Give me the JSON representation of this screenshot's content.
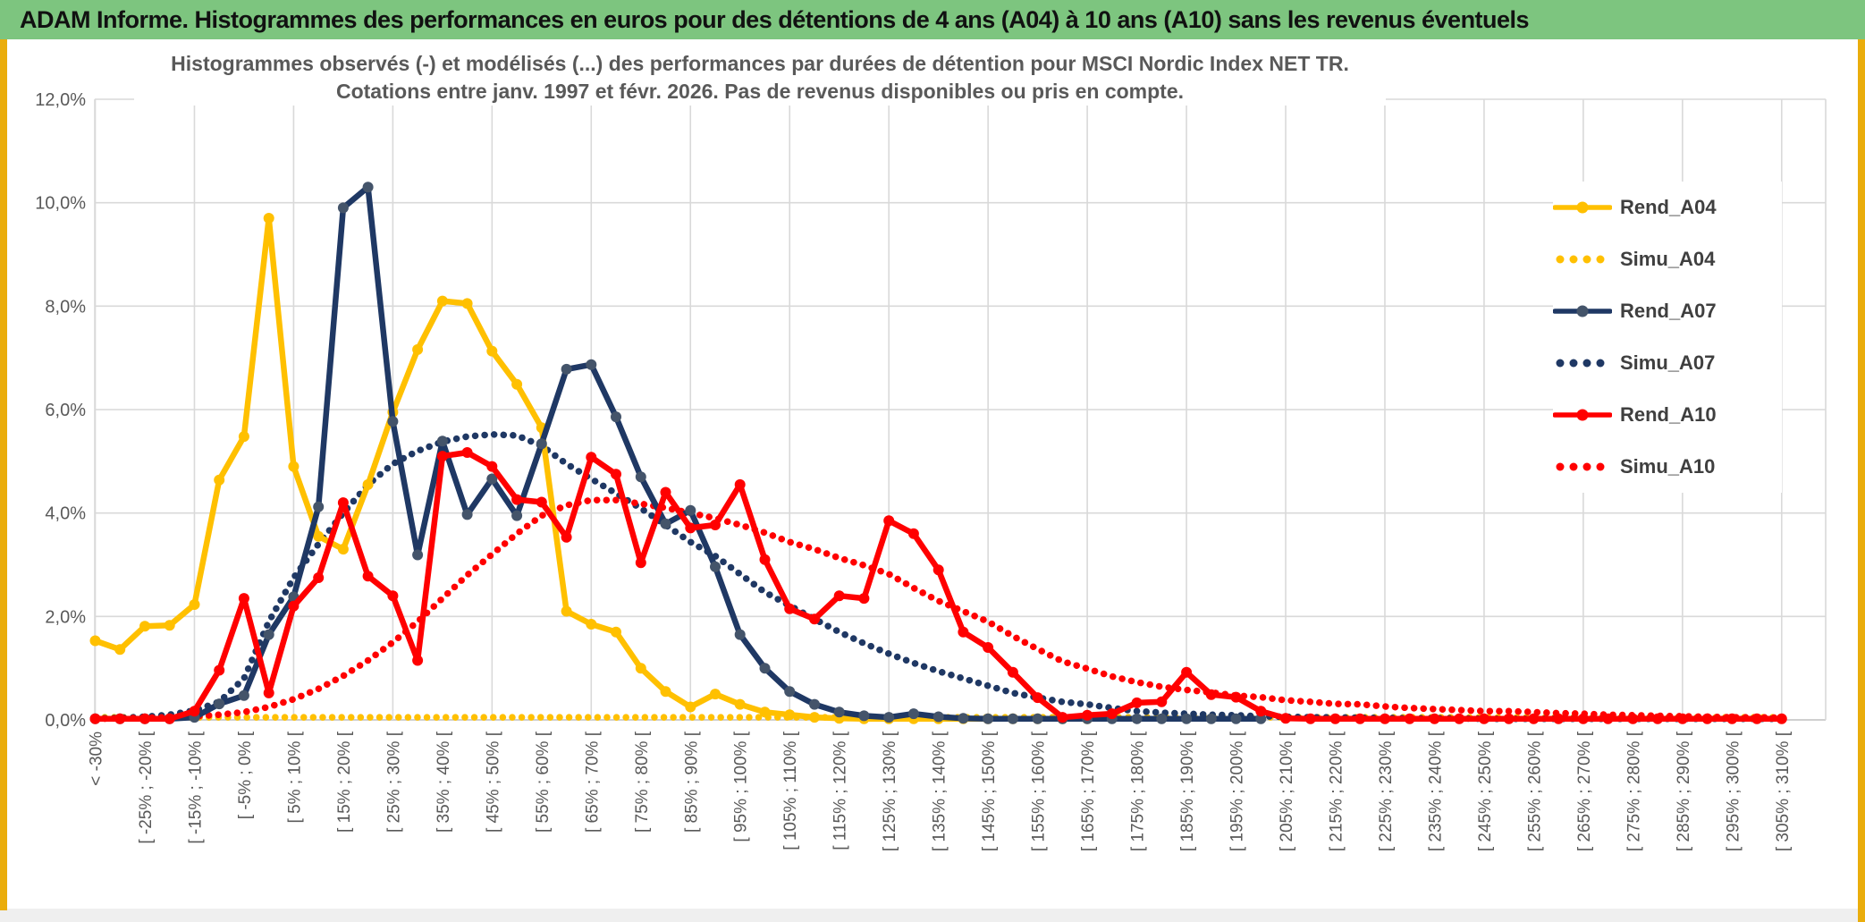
{
  "header": {
    "title": "ADAM Informe. Histogrammes des performances en euros pour des détentions de 4 ans (A04) à 10 ans (A10) sans les revenus éventuels"
  },
  "colors": {
    "header_bg": "#7DC57F",
    "edge_accent": "#EAAD0C",
    "grid": "#D9D9D9",
    "axis_line": "#BFBFBF",
    "axis_text": "#595959",
    "title_text": "#595959",
    "legend_text": "#3F3F3F",
    "gold": "#FFC000",
    "navy": "#1F3864",
    "navy_marker": "#44546A",
    "red": "#FF0000"
  },
  "chart_data": {
    "type": "line",
    "title_line1": "Histogrammes observés (-) et modélisés (...) des performances par durées de détention pour MSCI Nordic Index NET TR.",
    "title_line2": "Cotations entre janv. 1997 et févr. 2026. Pas de revenus disponibles ou pris en compte.",
    "ylabel": "",
    "xlabel": "",
    "ylim": [
      0,
      12
    ],
    "ytick_values": [
      0,
      2,
      4,
      6,
      8,
      10,
      12
    ],
    "ytick_labels": [
      "0,0%",
      "2,0%",
      "4,0%",
      "6,0%",
      "8,0%",
      "10,0%",
      "12,0%"
    ],
    "grid": true,
    "legend_position": "right",
    "n_points": 69,
    "x_label_every": 2,
    "x_grid_every": 4,
    "x_labels": [
      "< -30%",
      "[ -25% ; -20% [",
      "[ -15% ; -10% [",
      "[ -5% ; 0% [",
      "[ 5% ; 10% [",
      "[ 15% ; 20% [",
      "[ 25% ; 30% [",
      "[ 35% ; 40% [",
      "[ 45% ; 50% [",
      "[ 55% ; 60% [",
      "[ 65% ; 70% [",
      "[ 75% ; 80% [",
      "[ 85% ; 90% [",
      "[ 95% ; 100% [",
      "[ 105% ; 110% [",
      "[ 115% ; 120% [",
      "[ 125% ; 130% [",
      "[ 135% ; 140% [",
      "[ 145% ; 150% [",
      "[ 155% ; 160% [",
      "[ 165% ; 170% [",
      "[ 175% ; 180% [",
      "[ 185% ; 190% [",
      "[ 195% ; 200% [",
      "[ 205% ; 210% [",
      "[ 215% ; 220% [",
      "[ 225% ; 230% [",
      "[ 235% ; 240% [",
      "[ 245% ; 250% [",
      "[ 255% ; 260% [",
      "[ 265% ; 270% [",
      "[ 275% ; 280% [",
      "[ 285% ; 290% [",
      "[ 295% ; 300% [",
      "[ 305% ; 310% ["
    ],
    "series": [
      {
        "name": "Simu_A04",
        "style": "dotted",
        "color": "#FFC000",
        "values": [
          0.05,
          0.05,
          0.05,
          0.05,
          0.05,
          0.05,
          0.05,
          0.05,
          0.05,
          0.05,
          0.05,
          0.05,
          0.05,
          0.05,
          0.05,
          0.05,
          0.05,
          0.05,
          0.05,
          0.05,
          0.05,
          0.05,
          0.05,
          0.05,
          0.05,
          0.05,
          0.05,
          0.05,
          0.05,
          0.05,
          0.05,
          0.05,
          0.05,
          0.05,
          0.05,
          0.05,
          0.05,
          0.05,
          0.05,
          0.05,
          0.05,
          0.05,
          0.05,
          0.05,
          0.05,
          0.05,
          0.05,
          0.05,
          0.05,
          0.05,
          0.05,
          0.05,
          0.05,
          0.05,
          0.05,
          0.05,
          0.05,
          0.05,
          0.05,
          0.05,
          0.05,
          0.05,
          0.05,
          0.05,
          0.05,
          0.05,
          0.05,
          0.05,
          0.05
        ]
      },
      {
        "name": "Simu_A07",
        "style": "dotted",
        "color": "#1F3864",
        "values": [
          0.03,
          0.04,
          0.06,
          0.1,
          0.18,
          0.35,
          0.8,
          1.9,
          2.75,
          3.4,
          4.0,
          4.55,
          4.95,
          5.2,
          5.38,
          5.48,
          5.52,
          5.5,
          5.3,
          4.95,
          4.66,
          4.38,
          4.09,
          3.77,
          3.44,
          3.17,
          2.82,
          2.47,
          2.21,
          1.95,
          1.7,
          1.48,
          1.28,
          1.1,
          0.94,
          0.8,
          0.66,
          0.52,
          0.43,
          0.35,
          0.3,
          0.23,
          0.17,
          0.14,
          0.12,
          0.1,
          0.09,
          0.07,
          0.06,
          0.05,
          0.05,
          0.04,
          0.04,
          0.03,
          0.03,
          0.03,
          0.02,
          0.02,
          0.02,
          0.02,
          0.02,
          0.02,
          0.02,
          0.02,
          0.02,
          0.02,
          0.02,
          0.02,
          0.02
        ]
      },
      {
        "name": "Simu_A10",
        "style": "dotted",
        "color": "#FF0000",
        "values": [
          0.02,
          0.03,
          0.04,
          0.05,
          0.07,
          0.1,
          0.15,
          0.25,
          0.4,
          0.6,
          0.85,
          1.15,
          1.5,
          1.9,
          2.35,
          2.8,
          3.2,
          3.6,
          3.95,
          4.15,
          4.25,
          4.25,
          4.18,
          4.1,
          4.0,
          3.9,
          3.77,
          3.62,
          3.44,
          3.3,
          3.13,
          2.99,
          2.82,
          2.55,
          2.3,
          2.1,
          1.9,
          1.62,
          1.37,
          1.13,
          0.99,
          0.84,
          0.73,
          0.64,
          0.58,
          0.53,
          0.47,
          0.44,
          0.38,
          0.35,
          0.31,
          0.3,
          0.26,
          0.23,
          0.21,
          0.19,
          0.17,
          0.17,
          0.15,
          0.13,
          0.12,
          0.1,
          0.09,
          0.08,
          0.07,
          0.06,
          0.05,
          0.05,
          0.04
        ]
      },
      {
        "name": "Rend_A04",
        "style": "solid",
        "color": "#FFC000",
        "marker": "#FFC000",
        "values": [
          1.53,
          1.36,
          1.81,
          1.83,
          2.23,
          4.64,
          5.48,
          9.7,
          4.9,
          3.55,
          3.3,
          4.55,
          5.95,
          7.16,
          8.1,
          8.05,
          7.13,
          6.49,
          5.65,
          2.1,
          1.85,
          1.7,
          1.0,
          0.55,
          0.25,
          0.5,
          0.3,
          0.15,
          0.1,
          0.05,
          0.03,
          0.02,
          0.02,
          0.02,
          0.02,
          0.02,
          0.02,
          0.02,
          0.02,
          0.02,
          0.02,
          null,
          null,
          null,
          null,
          null,
          null,
          null,
          null,
          null,
          null,
          null,
          null,
          null,
          null,
          null,
          null,
          null,
          null,
          null,
          null,
          null,
          null,
          null,
          null,
          null,
          null,
          null,
          null
        ]
      },
      {
        "name": "Rend_A07",
        "style": "solid",
        "color": "#1F3864",
        "marker": "#44546A",
        "values": [
          0.02,
          0.02,
          0.02,
          0.02,
          0.05,
          0.31,
          0.47,
          1.65,
          2.38,
          4.12,
          9.9,
          10.3,
          5.77,
          3.19,
          5.39,
          3.97,
          4.66,
          3.95,
          5.34,
          6.78,
          6.87,
          5.86,
          4.7,
          3.79,
          4.05,
          2.96,
          1.65,
          1.0,
          0.55,
          0.3,
          0.15,
          0.08,
          0.05,
          0.12,
          0.06,
          0.03,
          0.02,
          0.02,
          0.02,
          0.02,
          0.02,
          0.02,
          0.02,
          0.02,
          0.02,
          0.02,
          0.02,
          0.02,
          null,
          null,
          null,
          null,
          null,
          null,
          null,
          null,
          null,
          null,
          null,
          null,
          null,
          null,
          null,
          null,
          null,
          null,
          null,
          null,
          null
        ]
      },
      {
        "name": "Rend_A10",
        "style": "solid",
        "color": "#FF0000",
        "marker": "#FF0000",
        "values": [
          0.02,
          0.02,
          0.02,
          0.02,
          0.17,
          0.96,
          2.35,
          0.52,
          2.2,
          2.75,
          4.2,
          2.78,
          2.4,
          1.15,
          5.1,
          5.17,
          4.9,
          4.26,
          4.21,
          3.53,
          5.08,
          4.75,
          3.04,
          4.4,
          3.71,
          3.77,
          4.55,
          3.1,
          2.15,
          1.95,
          2.4,
          2.35,
          3.85,
          3.6,
          2.9,
          1.7,
          1.4,
          0.92,
          0.43,
          0.05,
          0.09,
          0.12,
          0.33,
          0.35,
          0.92,
          0.49,
          0.44,
          0.17,
          0.03,
          0.02,
          0.02,
          0.02,
          0.02,
          0.02,
          0.02,
          0.02,
          0.02,
          0.02,
          0.02,
          0.02,
          0.02,
          0.02,
          0.02,
          0.02,
          0.02,
          0.02,
          0.02,
          0.02,
          0.02
        ]
      }
    ],
    "legend_order": [
      "Rend_A04",
      "Simu_A04",
      "Rend_A07",
      "Simu_A07",
      "Rend_A10",
      "Simu_A10"
    ]
  }
}
